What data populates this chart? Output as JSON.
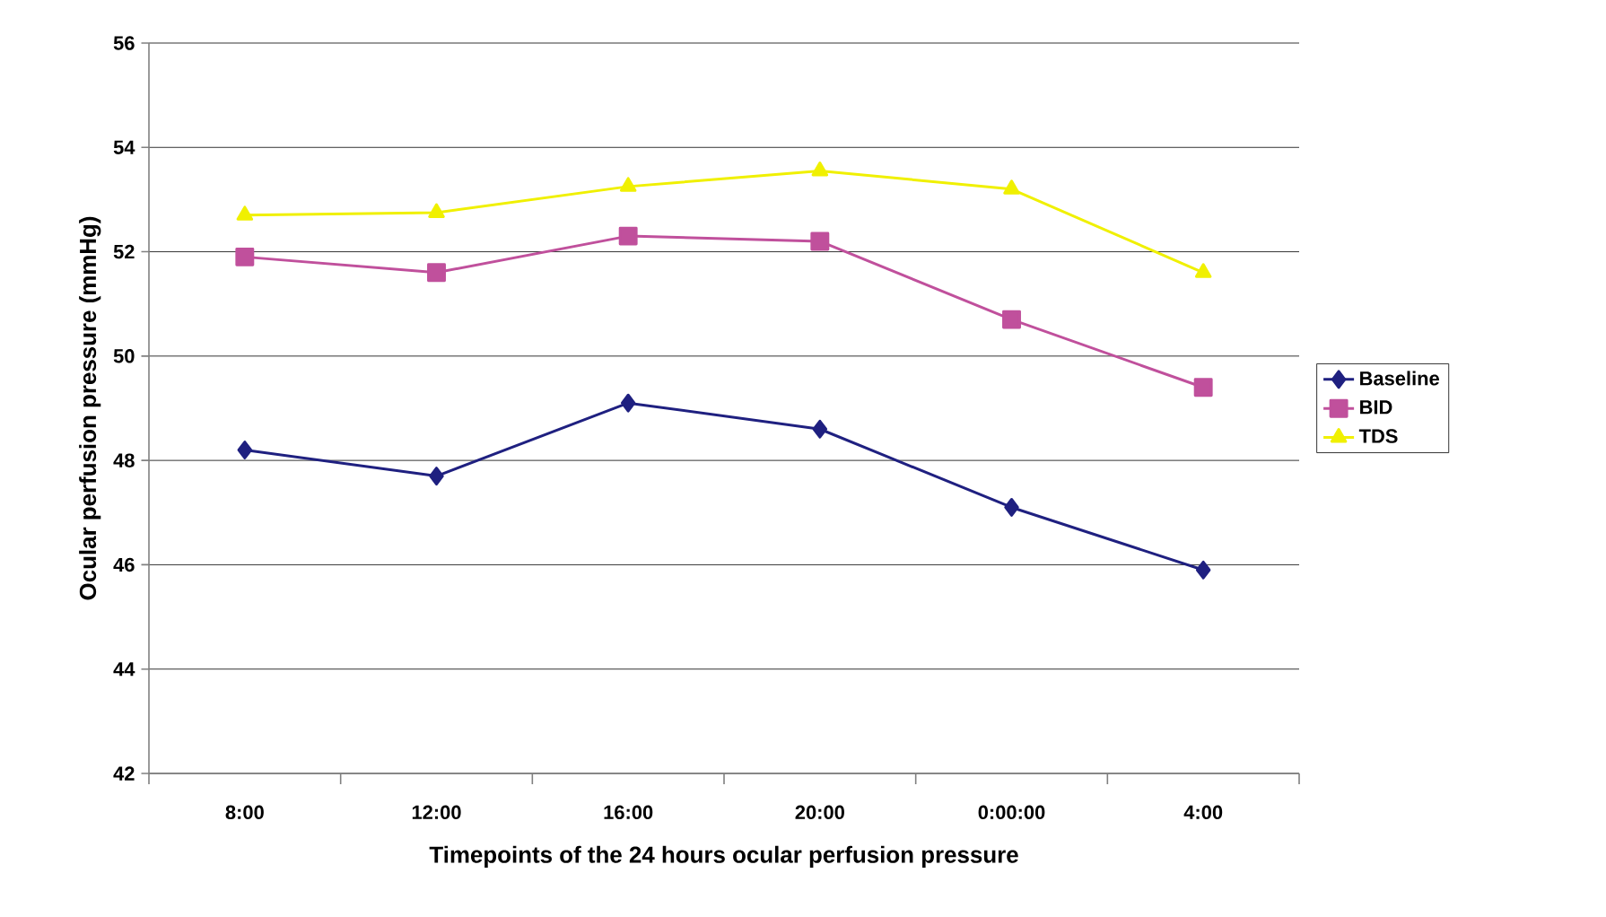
{
  "chart_data": {
    "type": "line",
    "xlabel": "Timepoints of the 24 hours ocular perfusion pressure",
    "ylabel": "Ocular perfusion pressure (mmHg)",
    "categories": [
      "8:00",
      "12:00",
      "16:00",
      "20:00",
      "0:00:00",
      "4:00"
    ],
    "series": [
      {
        "name": "Baseline",
        "color": "#1f2080",
        "marker": "diamond",
        "values": [
          48.2,
          47.7,
          49.1,
          48.6,
          47.1,
          45.9
        ]
      },
      {
        "name": "BID",
        "color": "#c0509c",
        "marker": "square",
        "values": [
          51.9,
          51.6,
          52.3,
          52.2,
          50.7,
          49.4
        ]
      },
      {
        "name": "TDS",
        "color": "#f0f000",
        "marker": "triangle",
        "values": [
          52.7,
          52.75,
          53.25,
          53.55,
          53.2,
          51.6
        ]
      }
    ],
    "ylim": [
      42,
      56
    ],
    "yticks": [
      42,
      44,
      46,
      48,
      50,
      52,
      54,
      56
    ],
    "grid": "y",
    "legend": "right",
    "line_style": "solid"
  }
}
